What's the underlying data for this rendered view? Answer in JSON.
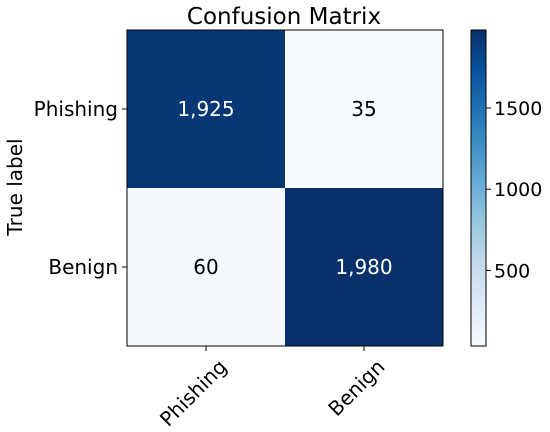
{
  "chart_data": {
    "type": "heatmap",
    "title": "Confusion Matrix",
    "xlabel": "",
    "ylabel": "True label",
    "row_labels": [
      "Phishing",
      "Benign"
    ],
    "col_labels": [
      "Phishing",
      "Benign"
    ],
    "values": [
      [
        1925,
        35
      ],
      [
        60,
        1980
      ]
    ],
    "cell_labels": [
      [
        "1,925",
        "35"
      ],
      [
        "60",
        "1,980"
      ]
    ],
    "colorbar": {
      "ticks": [
        500,
        1000,
        1500
      ],
      "tick_labels": [
        "500",
        "1000",
        "1500"
      ],
      "range": [
        35,
        1980
      ],
      "colormap": "Blues",
      "low_color": "#f7fbff",
      "high_color": "#08306b"
    },
    "x_tick_rotation": 45,
    "grid": false
  }
}
